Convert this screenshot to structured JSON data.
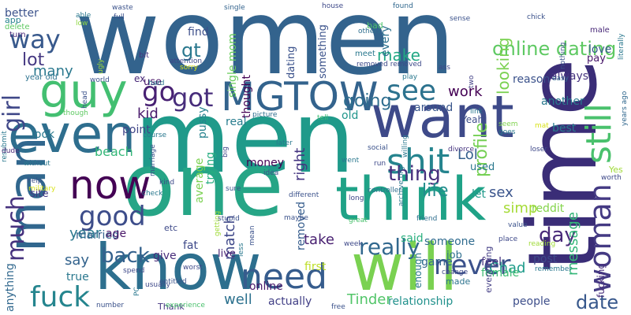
{
  "words": [
    {
      "text": "women",
      "color": "#33638d"
    },
    {
      "text": "men",
      "color": "#1f9a8a"
    },
    {
      "text": "time",
      "color": "#3a2d77"
    },
    {
      "text": "one",
      "color": "#26a586"
    },
    {
      "text": "want",
      "color": "#3e4a89"
    },
    {
      "text": "will",
      "color": "#7ad151"
    },
    {
      "text": "know",
      "color": "#2d6f8e"
    },
    {
      "text": "think",
      "color": "#1fa287"
    },
    {
      "text": "man",
      "color": "#31678e"
    },
    {
      "text": "even",
      "color": "#2e6e8e"
    },
    {
      "text": "guy",
      "color": "#43bf71"
    },
    {
      "text": "MGTOW",
      "color": "#33638d"
    },
    {
      "text": "now",
      "color": "#440154"
    },
    {
      "text": "shit",
      "color": "#25848e"
    },
    {
      "text": "need",
      "color": "#365c8d"
    },
    {
      "text": "still",
      "color": "#4ac16d"
    },
    {
      "text": "woman",
      "color": "#443a83"
    },
    {
      "text": "fuck",
      "color": "#25858e"
    },
    {
      "text": "good",
      "color": "#3d4d8a"
    },
    {
      "text": "way",
      "color": "#38598c"
    },
    {
      "text": "much",
      "color": "#46327e"
    },
    {
      "text": "girl",
      "color": "#3f4788"
    },
    {
      "text": "got",
      "color": "#472d7b"
    },
    {
      "text": "see",
      "color": "#2c728e"
    },
    {
      "text": "never",
      "color": "#3b518b"
    },
    {
      "text": "online dating",
      "color": "#5ec962"
    },
    {
      "text": "profile",
      "color": "#75d054"
    },
    {
      "text": "lot",
      "color": "#453882"
    },
    {
      "text": "go",
      "color": "#482173"
    },
    {
      "text": "gt",
      "color": "#2a788e"
    },
    {
      "text": "really",
      "color": "#31688e"
    },
    {
      "text": "back",
      "color": "#34618d"
    },
    {
      "text": "thing",
      "color": "#472f7d"
    },
    {
      "text": "life",
      "color": "#228d8d"
    },
    {
      "text": "day",
      "color": "#482979"
    },
    {
      "text": "date",
      "color": "#38588c"
    },
    {
      "text": "going",
      "color": "#2e6d8e"
    },
    {
      "text": "make",
      "color": "#22a884"
    },
    {
      "text": "looking",
      "color": "#7ad151"
    },
    {
      "text": "message",
      "color": "#35b779"
    },
    {
      "text": "beach",
      "color": "#35b779"
    },
    {
      "text": "many",
      "color": "#2a788e"
    },
    {
      "text": "well",
      "color": "#2c718e"
    },
    {
      "text": "say",
      "color": "#33638d"
    },
    {
      "text": "year",
      "color": "#2a788e"
    },
    {
      "text": "match",
      "color": "#3f4889"
    },
    {
      "text": "Tinder",
      "color": "#52c569"
    },
    {
      "text": "Chad",
      "color": "#1e9b8a"
    },
    {
      "text": "sex",
      "color": "#3a548c"
    },
    {
      "text": "simp",
      "color": "#a5db36"
    },
    {
      "text": "Lol",
      "color": "#35608d"
    },
    {
      "text": "right",
      "color": "#453581"
    },
    {
      "text": "removed",
      "color": "#365d8d"
    },
    {
      "text": "work",
      "color": "#440154"
    },
    {
      "text": "kid",
      "color": "#48196b"
    },
    {
      "text": "married",
      "color": "#33638d"
    },
    {
      "text": "take",
      "color": "#482071"
    },
    {
      "text": "actually",
      "color": "#424086"
    },
    {
      "text": "relationship",
      "color": "#21918c"
    },
    {
      "text": "people",
      "color": "#3d4e8a"
    },
    {
      "text": "find",
      "color": "#3c4f8a"
    },
    {
      "text": "use",
      "color": "#481467"
    },
    {
      "text": "old",
      "color": "#1f958b"
    },
    {
      "text": "single mom",
      "color": "#69cd5b"
    },
    {
      "text": "thought",
      "color": "#440154"
    },
    {
      "text": "dating",
      "color": "#3b528b"
    },
    {
      "text": "something",
      "color": "#3b528b"
    },
    {
      "text": "every",
      "color": "#2c718e"
    },
    {
      "text": "around",
      "color": "#39568c"
    },
    {
      "text": "another",
      "color": "#29798e"
    },
    {
      "text": "best",
      "color": "#287c8e"
    },
    {
      "text": "feel",
      "color": "#46337f"
    },
    {
      "text": "said",
      "color": "#2ab07f"
    },
    {
      "text": "fat",
      "color": "#3e4989"
    },
    {
      "text": "give",
      "color": "#472c7a"
    },
    {
      "text": "live",
      "color": "#482475"
    },
    {
      "text": "first",
      "color": "#bddf26"
    },
    {
      "text": "online",
      "color": "#48186a"
    },
    {
      "text": "true",
      "color": "#2a788e"
    },
    {
      "text": "age",
      "color": "#481668"
    },
    {
      "text": "real",
      "color": "#287d8e"
    },
    {
      "text": "pussy",
      "color": "#26828e"
    },
    {
      "text": "point",
      "color": "#404688"
    },
    {
      "text": "look",
      "color": "#29798e"
    },
    {
      "text": "site",
      "color": "#453882"
    },
    {
      "text": "money",
      "color": "#440154"
    },
    {
      "text": "average",
      "color": "#7ad151"
    },
    {
      "text": "trying",
      "color": "#27ad81"
    },
    {
      "text": "etc",
      "color": "#3e4a89"
    },
    {
      "text": "someone",
      "color": "#2f6b8e"
    },
    {
      "text": "job",
      "color": "#2e6e8e"
    },
    {
      "text": "game",
      "color": "#32658e"
    },
    {
      "text": "female",
      "color": "#3fbc73"
    },
    {
      "text": "post",
      "color": "#3e4989"
    },
    {
      "text": "let",
      "color": "#1f998a"
    },
    {
      "text": "used",
      "color": "#2a788e"
    },
    {
      "text": "reddit",
      "color": "#84d44b"
    },
    {
      "text": "always",
      "color": "#46337f"
    },
    {
      "text": "reason",
      "color": "#3b528b"
    },
    {
      "text": "love",
      "color": "#38598c"
    },
    {
      "text": "pay",
      "color": "#481769"
    },
    {
      "text": "made",
      "color": "#2c738e"
    },
    {
      "text": "enough",
      "color": "#2a768e"
    },
    {
      "text": "Yeah",
      "color": "#3d4e8a"
    },
    {
      "text": "fucking",
      "color": "#472d7b"
    },
    {
      "text": "everything",
      "color": "#433e85"
    },
    {
      "text": "anything",
      "color": "#31688e"
    },
    {
      "text": "Thank",
      "color": "#453581"
    },
    {
      "text": "better",
      "color": "#3b528b"
    },
    {
      "text": "app",
      "color": "#26828e"
    },
    {
      "text": "delete",
      "color": "#5ec962"
    },
    {
      "text": "turn",
      "color": "#482878"
    },
    {
      "text": "year old",
      "color": "#2c728e"
    },
    {
      "text": "bit",
      "color": "#46337f"
    },
    {
      "text": "attention",
      "color": "#3f4788"
    },
    {
      "text": "sorry",
      "color": "#d8e219"
    },
    {
      "text": "ex",
      "color": "#482878"
    },
    {
      "text": "hard",
      "color": "#2a788e"
    },
    {
      "text": "world",
      "color": "#3b528b"
    },
    {
      "text": "ugly",
      "color": "#a0da39"
    },
    {
      "text": "able",
      "color": "#2a788e"
    },
    {
      "text": "low",
      "color": "#8fd744"
    },
    {
      "text": "full",
      "color": "#3c508b"
    },
    {
      "text": "waste",
      "color": "#3b528b"
    },
    {
      "text": "single",
      "color": "#33638d"
    },
    {
      "text": "house",
      "color": "#3e4989"
    },
    {
      "text": "others",
      "color": "#2e6e8e"
    },
    {
      "text": "found",
      "color": "#31688e"
    },
    {
      "text": "bad",
      "color": "#4ec36b"
    },
    {
      "text": "meet",
      "color": "#2a788e"
    },
    {
      "text": "removed removed",
      "color": "#3e4a89"
    },
    {
      "text": "play",
      "color": "#2a788e"
    },
    {
      "text": "sense",
      "color": "#3b528b"
    },
    {
      "text": "chick",
      "color": "#3b528b"
    },
    {
      "text": "ass",
      "color": "#3e4989"
    },
    {
      "text": "nothing",
      "color": "#3b528b"
    },
    {
      "text": "male",
      "color": "#482878"
    },
    {
      "text": "easy",
      "color": "#31688e"
    },
    {
      "text": "two",
      "color": "#424086"
    },
    {
      "text": "link",
      "color": "#2a788e"
    },
    {
      "text": "seem",
      "color": "#7fd34e"
    },
    {
      "text": "goes",
      "color": "#2a788e"
    },
    {
      "text": "mat",
      "color": "#d8e219"
    },
    {
      "text": "years ago",
      "color": "#31688e"
    },
    {
      "text": "loser",
      "color": "#3e4989"
    },
    {
      "text": "literally",
      "color": "#2a788e"
    },
    {
      "text": "head",
      "color": "#3b528b"
    },
    {
      "text": "though",
      "color": "#5ec962"
    },
    {
      "text": "course",
      "color": "#2a788e"
    },
    {
      "text": "picture",
      "color": "#2e6e8e"
    },
    {
      "text": "tell",
      "color": "#3fbc73"
    },
    {
      "text": "later",
      "color": "#2a788e"
    },
    {
      "text": "social",
      "color": "#3b528b"
    },
    {
      "text": "willing",
      "color": "#2a788e"
    },
    {
      "text": "divorce",
      "color": "#46337f"
    },
    {
      "text": "resubmit",
      "color": "#2a788e"
    },
    {
      "text": "dude",
      "color": "#482878"
    },
    {
      "text": "without",
      "color": "#2a788e"
    },
    {
      "text": "marriage",
      "color": "#3b528b"
    },
    {
      "text": "big",
      "color": "#3e4989"
    },
    {
      "text": "idea",
      "color": "#3b528b"
    },
    {
      "text": "went",
      "color": "#2a788e"
    },
    {
      "text": "run",
      "color": "#3e4989"
    },
    {
      "text": "archive org",
      "color": "#2a788e"
    },
    {
      "text": "Yes",
      "color": "#a0da39"
    },
    {
      "text": "worth",
      "color": "#3e4989"
    },
    {
      "text": "help",
      "color": "#3b528b"
    },
    {
      "text": "military",
      "color": "#d8e219"
    },
    {
      "text": "check",
      "color": "#2a788e"
    },
    {
      "text": "kind",
      "color": "#3e4989"
    },
    {
      "text": "sure",
      "color": "#3b528b"
    },
    {
      "text": "different",
      "color": "#3b528b"
    },
    {
      "text": "controller",
      "color": "#2e6e8e"
    },
    {
      "text": "long",
      "color": "#3e4989"
    },
    {
      "text": "maybe",
      "color": "#3b528b"
    },
    {
      "text": "great",
      "color": "#4ac16d"
    },
    {
      "text": "stupid",
      "color": "#3b528b"
    },
    {
      "text": "less",
      "color": "#2a788e"
    },
    {
      "text": "mean",
      "color": "#3b528b"
    },
    {
      "text": "week",
      "color": "#3e4989"
    },
    {
      "text": "friend",
      "color": "#2e6e8e"
    },
    {
      "text": "value",
      "color": "#3b528b"
    },
    {
      "text": "place",
      "color": "#3e4989"
    },
    {
      "text": "reading",
      "color": "#a0da39"
    },
    {
      "text": "remember",
      "color": "#2a788e"
    },
    {
      "text": "change",
      "color": "#3e4989"
    },
    {
      "text": "free",
      "color": "#3b528b"
    },
    {
      "text": "spend",
      "color": "#3e4989"
    },
    {
      "text": "number",
      "color": "#3b528b"
    },
    {
      "text": "PC",
      "color": "#2a788e"
    },
    {
      "text": "experience",
      "color": "#4ac16d"
    },
    {
      "text": "entitled",
      "color": "#3b528b"
    },
    {
      "text": "worst",
      "color": "#3e4989"
    },
    {
      "text": "usually",
      "color": "#3e4989"
    },
    {
      "text": "getting",
      "color": "#a0da39"
    }
  ]
}
